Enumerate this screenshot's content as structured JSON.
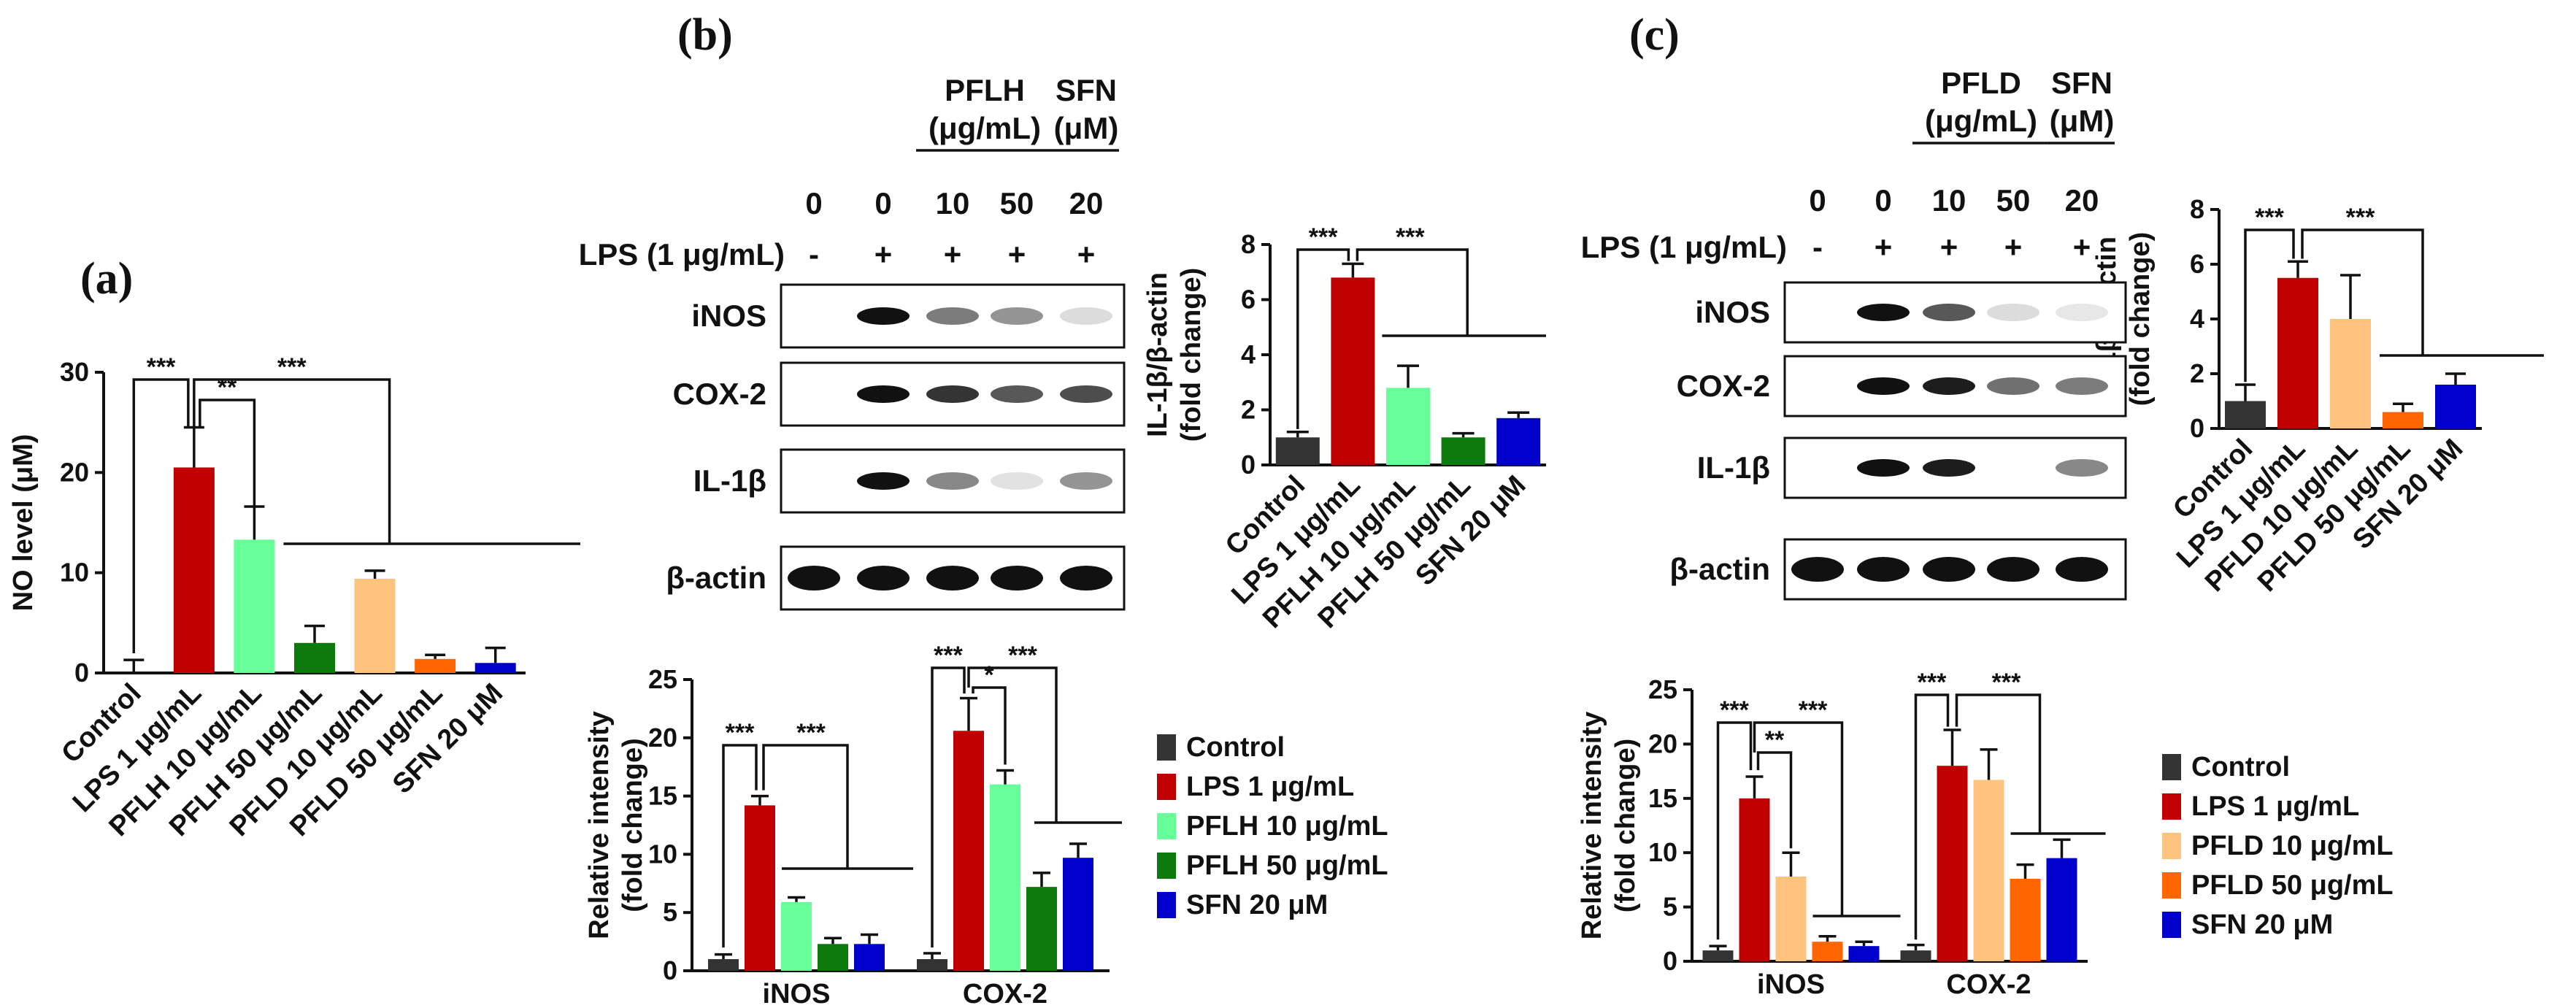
{
  "panel_labels": {
    "a": "(a)",
    "b": "(b)",
    "c": "(c)"
  },
  "colors": {
    "control": "#333333",
    "lps": "#c00000",
    "pflh10": "#66ff99",
    "pflh50": "#0d7a0d",
    "pfld10": "#ffc380",
    "pfld50": "#ff6600",
    "sfn": "#0000cc"
  },
  "blots": {
    "b": {
      "group1": "PFLH",
      "group1_unit": "(μg/mL)",
      "group2": "SFN",
      "group2_unit": "(μM)",
      "doses": [
        "0",
        "0",
        "10",
        "50",
        "20"
      ],
      "lps_label": "LPS (1 μg/mL)",
      "lps": [
        "-",
        "+",
        "+",
        "+",
        "+"
      ],
      "rows": [
        "iNOS",
        "COX-2",
        "IL-1β",
        "β-actin"
      ]
    },
    "c": {
      "group1": "PFLD",
      "group1_unit": "(μg/mL)",
      "group2": "SFN",
      "group2_unit": "(μM)",
      "doses": [
        "0",
        "0",
        "10",
        "50",
        "20"
      ],
      "lps_label": "LPS (1 μg/mL)",
      "lps": [
        "-",
        "+",
        "+",
        "+",
        "+"
      ],
      "rows": [
        "iNOS",
        "COX-2",
        "IL-1β",
        "β-actin"
      ]
    }
  },
  "legends": {
    "b": [
      "Control",
      "LPS 1 μg/mL",
      "PFLH 10 μg/mL",
      "PFLH 50 μg/mL",
      "SFN 20 μM"
    ],
    "c": [
      "Control",
      "LPS 1 μg/mL",
      "PFLD 10 μg/mL",
      "PFLD 50 μg/mL",
      "SFN 20 μM"
    ]
  },
  "chart_data": [
    {
      "id": "a",
      "type": "bar",
      "ylabel": "NO level (μM)",
      "ylim": [
        0,
        30
      ],
      "yticks": [
        0,
        10,
        20,
        30
      ],
      "categories": [
        "Control",
        "LPS 1 μg/mL",
        "PFLH 10 μg/mL",
        "PFLH 50 μg/mL",
        "PFLD 10 μg/mL",
        "PFLD 50 μg/mL",
        "SFN 20 μM"
      ],
      "values": [
        0,
        20.5,
        13.3,
        3.0,
        9.4,
        1.4,
        1.0
      ],
      "errors": [
        1.3,
        4.0,
        3.3,
        1.7,
        0.8,
        0.4,
        1.5
      ],
      "colors": [
        "#333333",
        "#c00000",
        "#66ff99",
        "#0d7a0d",
        "#ffc380",
        "#ff6600",
        "#0000cc"
      ],
      "significance": [
        "***",
        "**",
        "***"
      ]
    },
    {
      "id": "b-il1b",
      "type": "bar",
      "ylabel": "IL-1β/β-actin (fold change)",
      "ylim": [
        0,
        8
      ],
      "yticks": [
        0,
        2,
        4,
        6,
        8
      ],
      "categories": [
        "Control",
        "LPS 1 μg/mL",
        "PFLH 10 μg/mL",
        "PFLH 50 μg/mL",
        "SFN 20 μM"
      ],
      "values": [
        1.0,
        6.8,
        2.8,
        1.0,
        1.7
      ],
      "errors": [
        0.2,
        0.5,
        0.8,
        0.15,
        0.2
      ],
      "colors": [
        "#333333",
        "#c00000",
        "#66ff99",
        "#0d7a0d",
        "#0000cc"
      ],
      "significance": [
        "***",
        "***"
      ]
    },
    {
      "id": "b-rel",
      "type": "bar",
      "ylabel": "Relative intensity (fold change)",
      "ylim": [
        0,
        25
      ],
      "yticks": [
        0,
        5,
        10,
        15,
        20,
        25
      ],
      "categories": [
        "iNOS",
        "COX-2"
      ],
      "series": [
        {
          "name": "Control",
          "values": [
            1.0,
            1.0
          ],
          "errors": [
            0.4,
            0.5
          ]
        },
        {
          "name": "LPS 1 μg/mL",
          "values": [
            14.2,
            20.6
          ],
          "errors": [
            0.8,
            2.8
          ]
        },
        {
          "name": "PFLH 10 μg/mL",
          "values": [
            5.9,
            16.0
          ],
          "errors": [
            0.4,
            1.2
          ]
        },
        {
          "name": "PFLH 50 μg/mL",
          "values": [
            2.3,
            7.2
          ],
          "errors": [
            0.5,
            1.2
          ]
        },
        {
          "name": "SFN 20 μM",
          "values": [
            2.3,
            9.7
          ],
          "errors": [
            0.8,
            1.2
          ]
        }
      ],
      "significance": {
        "iNOS": [
          "***",
          "***"
        ],
        "COX-2": [
          "***",
          "*",
          "***"
        ]
      }
    },
    {
      "id": "c-il1b",
      "type": "bar",
      "ylabel": "IL-1β/β-actin (fold change)",
      "ylim": [
        0,
        8
      ],
      "yticks": [
        0,
        2,
        4,
        6,
        8
      ],
      "categories": [
        "Control",
        "LPS 1 μg/mL",
        "PFLD 10 μg/mL",
        "PFLD 50 μg/mL",
        "SFN 20 μM"
      ],
      "values": [
        1.0,
        5.5,
        4.0,
        0.6,
        1.6
      ],
      "errors": [
        0.6,
        0.6,
        1.6,
        0.3,
        0.4
      ],
      "colors": [
        "#333333",
        "#c00000",
        "#ffc380",
        "#ff6600",
        "#0000cc"
      ],
      "significance": [
        "***",
        "***"
      ]
    },
    {
      "id": "c-rel",
      "type": "bar",
      "ylabel": "Relative intensity (fold change)",
      "ylim": [
        0,
        25
      ],
      "yticks": [
        0,
        5,
        10,
        15,
        20,
        25
      ],
      "categories": [
        "iNOS",
        "COX-2"
      ],
      "series": [
        {
          "name": "Control",
          "values": [
            1.0,
            1.0
          ],
          "errors": [
            0.4,
            0.5
          ]
        },
        {
          "name": "LPS 1 μg/mL",
          "values": [
            15.0,
            18.0
          ],
          "errors": [
            2.0,
            3.3
          ]
        },
        {
          "name": "PFLD 10 μg/mL",
          "values": [
            7.8,
            16.7
          ],
          "errors": [
            2.2,
            2.8
          ]
        },
        {
          "name": "PFLD 50 μg/mL",
          "values": [
            1.8,
            7.6
          ],
          "errors": [
            0.5,
            1.3
          ]
        },
        {
          "name": "SFN 20 μM",
          "values": [
            1.4,
            9.5
          ],
          "errors": [
            0.4,
            1.7
          ]
        }
      ],
      "significance": {
        "iNOS": [
          "***",
          "**",
          "***"
        ],
        "COX-2": [
          "***",
          "***"
        ]
      }
    }
  ]
}
